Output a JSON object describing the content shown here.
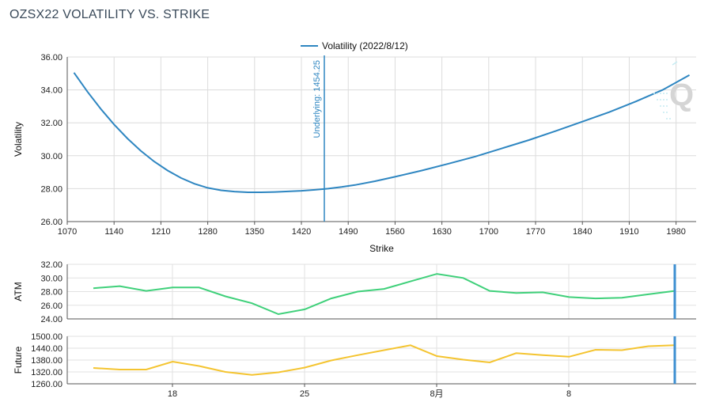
{
  "title": "OZSX22 VOLATILITY VS. STRIKE",
  "chart_data": [
    {
      "type": "line",
      "xlabel": "Strike",
      "ylabel": "Volatility",
      "xlim": [
        1070,
        2010
      ],
      "ylim": [
        26,
        36
      ],
      "x_ticks": [
        1070,
        1140,
        1210,
        1280,
        1350,
        1420,
        1490,
        1560,
        1630,
        1700,
        1770,
        1840,
        1910,
        1980
      ],
      "y_ticks": [
        "26.00",
        "28.00",
        "30.00",
        "32.00",
        "34.00",
        "36.00"
      ],
      "legend": "top-center",
      "grid": true,
      "series": [
        {
          "name": "Volatility (2022/8/12)",
          "color": "#2e86c1",
          "x": [
            1080,
            1100,
            1120,
            1140,
            1160,
            1180,
            1200,
            1220,
            1240,
            1260,
            1280,
            1300,
            1320,
            1340,
            1360,
            1380,
            1400,
            1420,
            1440,
            1460,
            1480,
            1500,
            1530,
            1560,
            1600,
            1640,
            1680,
            1720,
            1760,
            1800,
            1840,
            1880,
            1920,
            1960,
            2000
          ],
          "values": [
            35.05,
            33.9,
            32.85,
            31.9,
            31.05,
            30.3,
            29.65,
            29.1,
            28.65,
            28.3,
            28.05,
            27.9,
            27.82,
            27.78,
            27.78,
            27.8,
            27.83,
            27.87,
            27.93,
            28.0,
            28.1,
            28.22,
            28.45,
            28.72,
            29.1,
            29.52,
            29.95,
            30.45,
            30.95,
            31.5,
            32.07,
            32.65,
            33.3,
            34.0,
            34.9
          ]
        }
      ],
      "annotations": [
        {
          "type": "vline",
          "x": 1454.25,
          "label": "Underlying: 1454.25",
          "color": "#2e86c1"
        }
      ]
    },
    {
      "type": "line",
      "ylabel": "ATM",
      "ylim": [
        24,
        32
      ],
      "y_ticks": [
        "24.00",
        "26.00",
        "28.00",
        "30.00",
        "32.00"
      ],
      "grid": true,
      "series": [
        {
          "color": "#3fd07a",
          "values": [
            28.5,
            28.8,
            28.1,
            28.6,
            28.6,
            27.3,
            26.3,
            24.7,
            25.4,
            27.0,
            28.0,
            28.4,
            29.5,
            30.6,
            30.0,
            28.1,
            27.8,
            27.9,
            27.2,
            27.0,
            27.1,
            27.6,
            28.1
          ]
        }
      ]
    },
    {
      "type": "line",
      "ylabel": "Future",
      "ylim": [
        1260,
        1500
      ],
      "y_ticks": [
        "1260.00",
        "1320.00",
        "1380.00",
        "1440.00",
        "1500.00"
      ],
      "x_ticks": [
        "18",
        "25",
        "8月",
        "8"
      ],
      "grid": true,
      "series": [
        {
          "color": "#f4c430",
          "values": [
            1340,
            1332,
            1332,
            1372,
            1350,
            1320,
            1305,
            1318,
            1342,
            1378,
            1405,
            1430,
            1455,
            1400,
            1382,
            1368,
            1415,
            1405,
            1397,
            1432,
            1430,
            1450,
            1455
          ]
        }
      ]
    }
  ]
}
